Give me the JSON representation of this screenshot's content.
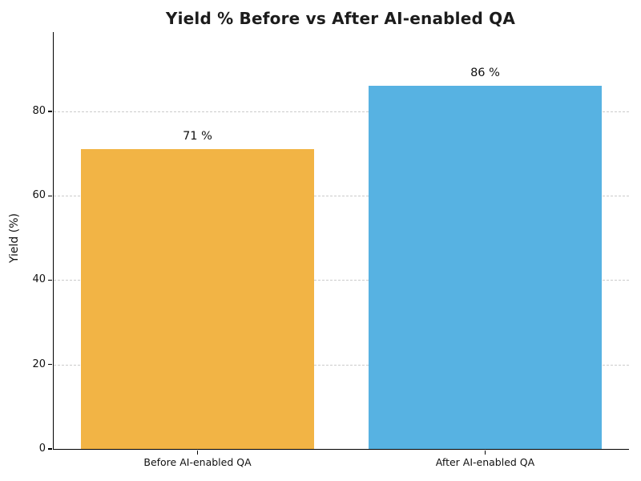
{
  "figure": {
    "background": "#ffffff",
    "spine_color": "#000000",
    "grid_color": "#cbcbcb",
    "text_color": "#111111",
    "title_color": "#1c1c1c"
  },
  "chart_data": {
    "type": "bar",
    "title": "Yield % Before vs After AI-enabled QA",
    "xlabel": "",
    "ylabel": "Yield (%)",
    "categories": [
      "Before AI-enabled QA",
      "After AI-enabled QA"
    ],
    "values": [
      71,
      86
    ],
    "value_labels": [
      "71 %",
      "86 %"
    ],
    "bar_colors": [
      "#F2B445",
      "#57B2E2"
    ],
    "ylim": [
      0,
      98.8
    ],
    "yticks": [
      0,
      20,
      40,
      60,
      80
    ],
    "grid": "horizontal dashed gridlines at y ticks",
    "legend": "none",
    "spines": [
      "left",
      "bottom"
    ]
  }
}
